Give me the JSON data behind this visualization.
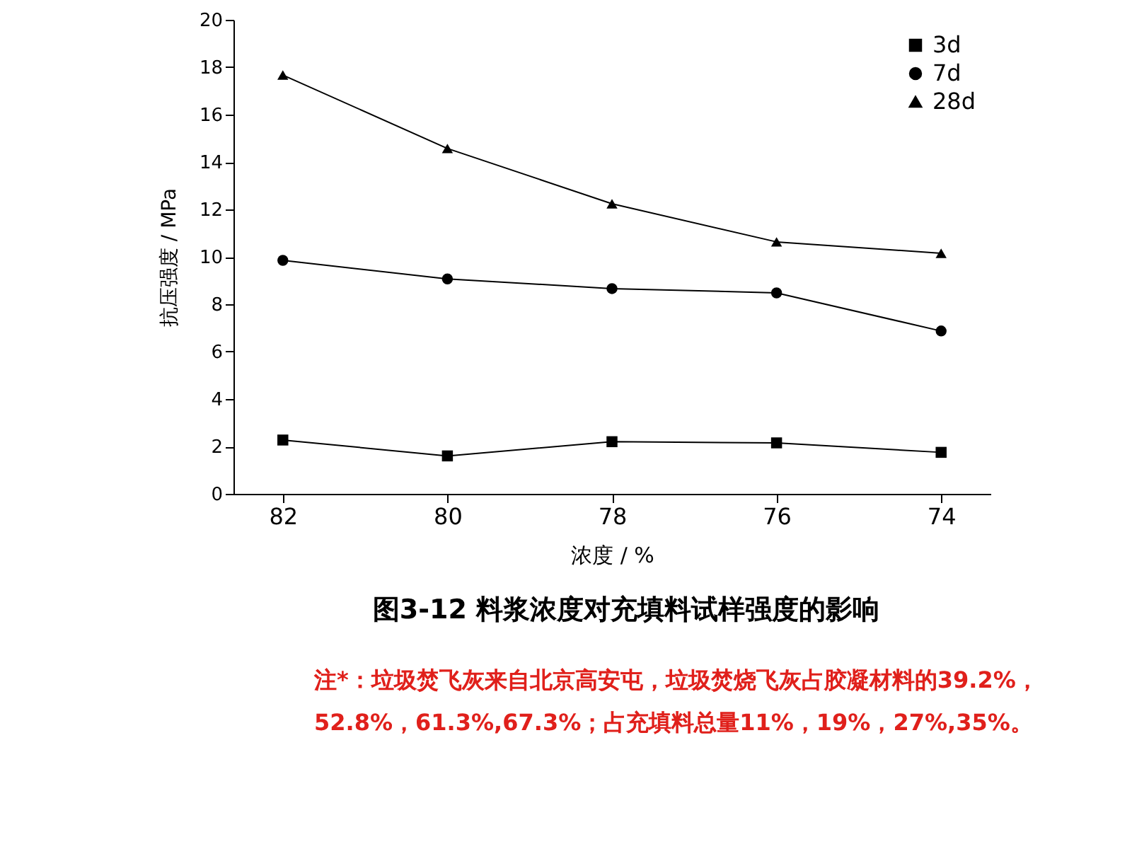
{
  "chart_data": {
    "type": "line",
    "title": "图3-12 料浆浓度对充填料试样强度的影响",
    "xlabel": "浓度 / %",
    "ylabel": "抗压强度 / MPa",
    "x": [
      82,
      80,
      78,
      76,
      74
    ],
    "xlim": [
      82.6,
      73.4
    ],
    "xticks": [
      82,
      80,
      78,
      76,
      74
    ],
    "ylim": [
      0,
      20
    ],
    "yticks": [
      0,
      2,
      4,
      6,
      8,
      10,
      12,
      14,
      16,
      18,
      20
    ],
    "series": [
      {
        "name": "3d",
        "color": "#000000",
        "marker": "square",
        "values": [
          2.27,
          1.6,
          2.2,
          2.15,
          1.75
        ]
      },
      {
        "name": "7d",
        "color": "#000000",
        "marker": "circle",
        "values": [
          9.85,
          9.07,
          8.66,
          8.48,
          6.87
        ]
      },
      {
        "name": "28d",
        "color": "#000000",
        "marker": "triangle",
        "values": [
          17.67,
          14.57,
          12.24,
          10.63,
          10.15
        ]
      }
    ],
    "legend": "top right",
    "grid": false,
    "line_style": "solid",
    "annotations": [
      "注*：垃圾焚飞灰来自北京高安屯，垃圾焚烧飞灰占胶凝材料的39.2%，",
      "52.8%，61.3%,67.3%；占充填料总量11%，19%，27%,35%。"
    ]
  }
}
